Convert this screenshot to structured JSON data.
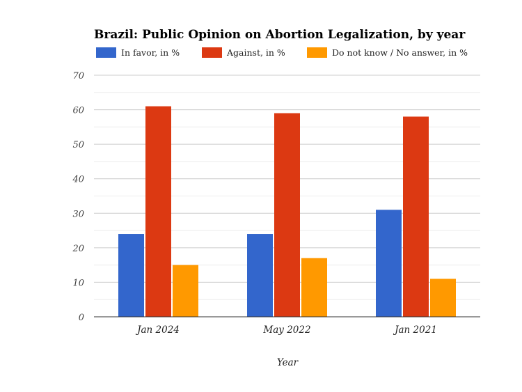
{
  "chart_data": {
    "type": "bar",
    "title": "Brazil: Public Opinion on Abortion Legalization, by year",
    "xlabel": "Year",
    "ylabel": "",
    "ylim": [
      0,
      70
    ],
    "yticks": [
      "0",
      "10",
      "20",
      "30",
      "40",
      "50",
      "60",
      "70"
    ],
    "grid": true,
    "legend_position": "top",
    "categories": [
      "Jan 2024",
      "May 2022",
      "Jan 2021"
    ],
    "series": [
      {
        "name": "In favor, in %",
        "color": "#3366cc",
        "values": [
          24,
          24,
          31
        ]
      },
      {
        "name": "Against, in %",
        "color": "#dc3912",
        "values": [
          61,
          59,
          58
        ]
      },
      {
        "name": "Do not know / No answer, in %",
        "color": "#ff9900",
        "values": [
          15,
          17,
          11
        ]
      }
    ]
  }
}
